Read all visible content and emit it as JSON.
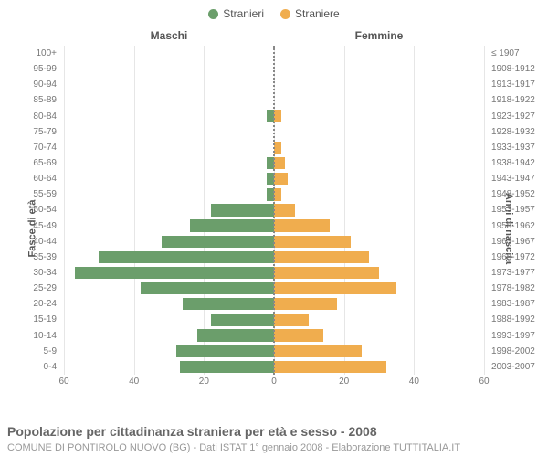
{
  "legend": {
    "male": {
      "label": "Stranieri",
      "color": "#6b9e6b"
    },
    "female": {
      "label": "Straniere",
      "color": "#f0ad4e"
    }
  },
  "headers": {
    "left": "Maschi",
    "right": "Femmine"
  },
  "y_titles": {
    "left": "Fasce di età",
    "right": "Anni di nascita"
  },
  "axis": {
    "max": 60,
    "ticks": [
      60,
      40,
      20,
      0,
      20,
      40,
      60
    ]
  },
  "colors": {
    "male_bar": "#6b9e6b",
    "female_bar": "#f0ad4e",
    "grid": "#e6e6e6",
    "text": "#777777"
  },
  "rows": [
    {
      "age": "100+",
      "birth": "≤ 1907",
      "m": 0,
      "f": 0
    },
    {
      "age": "95-99",
      "birth": "1908-1912",
      "m": 0,
      "f": 0
    },
    {
      "age": "90-94",
      "birth": "1913-1917",
      "m": 0,
      "f": 0
    },
    {
      "age": "85-89",
      "birth": "1918-1922",
      "m": 0,
      "f": 0
    },
    {
      "age": "80-84",
      "birth": "1923-1927",
      "m": 2,
      "f": 2
    },
    {
      "age": "75-79",
      "birth": "1928-1932",
      "m": 0,
      "f": 0
    },
    {
      "age": "70-74",
      "birth": "1933-1937",
      "m": 0,
      "f": 2
    },
    {
      "age": "65-69",
      "birth": "1938-1942",
      "m": 2,
      "f": 3
    },
    {
      "age": "60-64",
      "birth": "1943-1947",
      "m": 2,
      "f": 4
    },
    {
      "age": "55-59",
      "birth": "1948-1952",
      "m": 2,
      "f": 2
    },
    {
      "age": "50-54",
      "birth": "1953-1957",
      "m": 18,
      "f": 6
    },
    {
      "age": "45-49",
      "birth": "1958-1962",
      "m": 24,
      "f": 16
    },
    {
      "age": "40-44",
      "birth": "1963-1967",
      "m": 32,
      "f": 22
    },
    {
      "age": "35-39",
      "birth": "1968-1972",
      "m": 50,
      "f": 27
    },
    {
      "age": "30-34",
      "birth": "1973-1977",
      "m": 57,
      "f": 30
    },
    {
      "age": "25-29",
      "birth": "1978-1982",
      "m": 38,
      "f": 35
    },
    {
      "age": "20-24",
      "birth": "1983-1987",
      "m": 26,
      "f": 18
    },
    {
      "age": "15-19",
      "birth": "1988-1992",
      "m": 18,
      "f": 10
    },
    {
      "age": "10-14",
      "birth": "1993-1997",
      "m": 22,
      "f": 14
    },
    {
      "age": "5-9",
      "birth": "1998-2002",
      "m": 28,
      "f": 25
    },
    {
      "age": "0-4",
      "birth": "2003-2007",
      "m": 27,
      "f": 32
    }
  ],
  "caption": "Popolazione per cittadinanza straniera per età e sesso - 2008",
  "subcaption": "COMUNE DI PONTIROLO NUOVO (BG) - Dati ISTAT 1° gennaio 2008 - Elaborazione TUTTITALIA.IT"
}
